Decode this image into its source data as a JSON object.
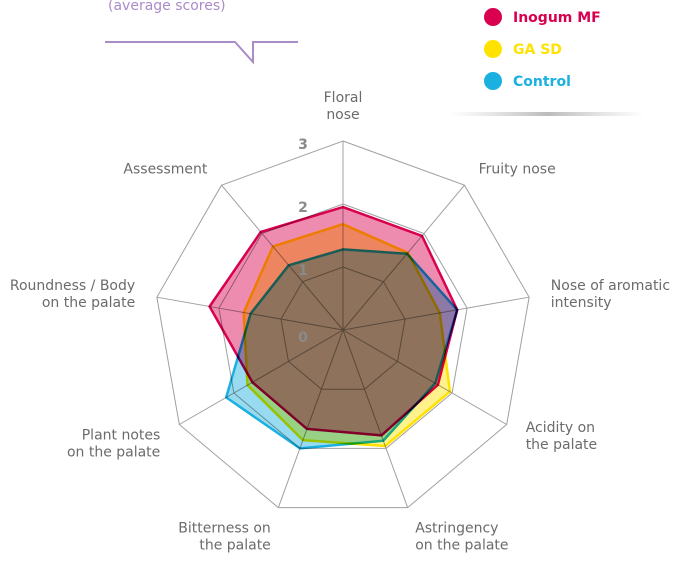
{
  "chart_data": {
    "type": "radar",
    "subtitle": "(average scores)",
    "categories": [
      "Floral\nnose",
      "Fruity nose",
      "Nose of aromatic\nintensity",
      "Acidity on\nthe palate",
      "Astringency\non the palate",
      "Bitterness on\nthe palate",
      "Plant notes\non the palate",
      "Roundness / Body\non the palate",
      "Assessment"
    ],
    "rlim": [
      0,
      3
    ],
    "rticks": [
      0,
      1,
      2,
      3
    ],
    "series": [
      {
        "name": "Control",
        "color": "#1ab0e0",
        "values": [
          1.28,
          1.58,
          1.84,
          1.69,
          1.87,
          2.0,
          2.14,
          1.49,
          1.34
        ]
      },
      {
        "name": "GA SD",
        "color": "#ffe200",
        "values": [
          1.68,
          1.6,
          1.56,
          1.96,
          1.96,
          1.86,
          1.75,
          1.6,
          1.73
        ]
      },
      {
        "name": "Inogum MF",
        "color": "#d9004f",
        "values": [
          1.95,
          1.95,
          1.84,
          1.74,
          1.78,
          1.67,
          1.66,
          2.15,
          2.03
        ]
      }
    ],
    "legend_order": [
      2,
      1,
      0
    ]
  }
}
